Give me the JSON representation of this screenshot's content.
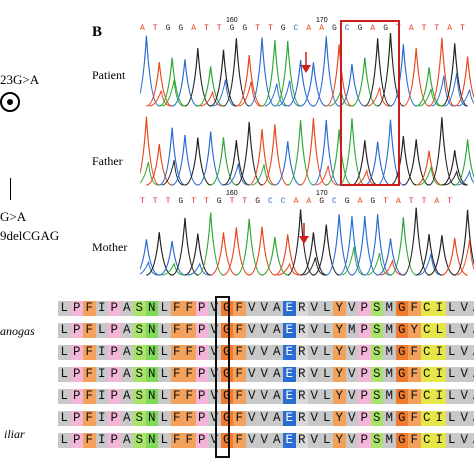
{
  "panel_b_label": "B",
  "left_labels": {
    "mutation1": "23G>A",
    "mutation2": "G>A",
    "mutation3": "9delCGAG"
  },
  "traces": [
    {
      "label": "Patient",
      "sequence": "ATGGATTGGTTGCAAGCGAGTATTAT",
      "positions": [
        "160",
        "170"
      ]
    },
    {
      "label": "Father",
      "sequence": "",
      "positions": []
    },
    {
      "label": "Mother",
      "sequence": "TTTGTTGTTGCCAAGCGAGTATTAT",
      "positions": [
        "160",
        "170"
      ]
    }
  ],
  "species_labels": [
    "anogas",
    "iliar"
  ],
  "alignment": [
    "LPFIPASNLFFPVGFVVAERVLYVPSMGFCILVAHGWQKISTK",
    "LPFLPASNLFFPVGFVVAERVLYMPSMGYCLLVAYGFEQLQRR",
    "LPFIPASNLFFPVGFVVAERVLYVPSMGFCILVAHGWQKISNK",
    "LPFIPASNLFFPVGFVVAERVLYVPSMGFCILVAHGWQKISTK",
    "LPFIPASNLFFPVGFVVAERVLYVPSMGFCILVAHGWQKISNK",
    "LPFIPASNLFFPVGFVVAERVLYVPSMGFCILVAHGWQKISNK",
    "LPFIPASNLFFPVGFVVAERVLYVPSMGFCILVAHGWQKISNK"
  ],
  "colors": {
    "A": "#e8471f",
    "T": "#d7302a",
    "G": "#222222",
    "C": "#2a6cd1",
    "box": "#cc1d1d",
    "arrow": "#cc1d1d"
  }
}
